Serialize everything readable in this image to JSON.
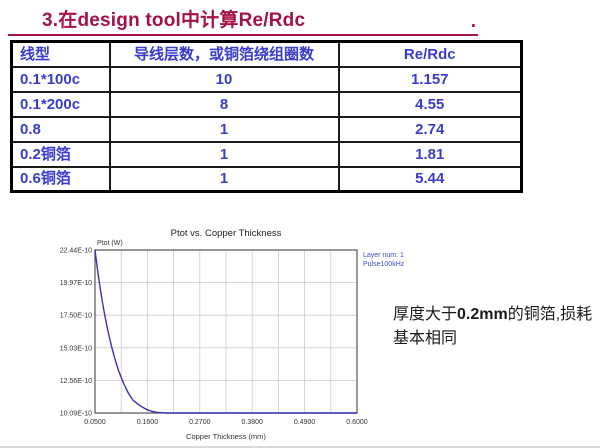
{
  "slide_title": {
    "text": "3.在design tool中计算Re/Rdc",
    "trailing_period": "."
  },
  "table": {
    "headers": [
      "线型",
      "导线层数，或铜箔绕组圈数",
      "Re/Rdc"
    ],
    "rows": [
      [
        "0.1*100c",
        "10",
        "1.157"
      ],
      [
        "0.1*200c",
        "8",
        "4.55"
      ],
      [
        "0.8",
        "1",
        "2.74"
      ],
      [
        "0.2铜箔",
        "1",
        "1.81"
      ],
      [
        "0.6铜箔",
        "1",
        "5.44"
      ]
    ]
  },
  "chart_data": {
    "type": "line",
    "title": "Ptot vs. Copper Thickness",
    "xlabel": "Copper Thickness (mm)",
    "ylabel": "Ptot (W)",
    "legend": [
      "Layer num: 1",
      "Pulse100kHz"
    ],
    "legend_position": "outside-top-right",
    "grid": true,
    "xlim": [
      0.05,
      0.6
    ],
    "ylim": [
      1.009e-09,
      2.244e-09
    ],
    "x_ticks": [
      "0.0500",
      "0.1600",
      "0.2700",
      "0.3800",
      "0.4900",
      "0.6000"
    ],
    "y_ticks": [
      "22.44E-10",
      "19.97E-10",
      "17.50E-10",
      "15.03E-10",
      "12.56E-10",
      "10.09E-10"
    ],
    "y_units": "W, values are x1e-10",
    "series": [
      {
        "name": "Layer num: 1 Pulse100kHz",
        "points": [
          [
            0.05,
            22.44
          ],
          [
            0.055,
            21.0
          ],
          [
            0.06,
            19.75
          ],
          [
            0.065,
            18.62
          ],
          [
            0.07,
            17.6
          ],
          [
            0.075,
            16.68
          ],
          [
            0.08,
            15.85
          ],
          [
            0.085,
            15.1
          ],
          [
            0.09,
            14.42
          ],
          [
            0.095,
            13.81
          ],
          [
            0.1,
            13.26
          ],
          [
            0.11,
            12.33
          ],
          [
            0.12,
            11.6
          ],
          [
            0.13,
            11.05
          ],
          [
            0.14,
            10.76
          ],
          [
            0.15,
            10.52
          ],
          [
            0.16,
            10.33
          ],
          [
            0.17,
            10.21
          ],
          [
            0.18,
            10.14
          ],
          [
            0.19,
            10.11
          ],
          [
            0.2,
            10.09
          ],
          [
            0.25,
            10.09
          ],
          [
            0.3,
            10.09
          ],
          [
            0.35,
            10.09
          ],
          [
            0.4,
            10.09
          ],
          [
            0.45,
            10.09
          ],
          [
            0.5,
            10.09
          ],
          [
            0.55,
            10.09
          ],
          [
            0.6,
            10.09
          ]
        ]
      }
    ]
  },
  "annotation": {
    "prefix": "厚度大于",
    "bold": "0.2mm",
    "suffix": "的铜箔,损耗基本相同"
  },
  "colors": {
    "title_accent": "#a3114a",
    "table_text": "#3a3ccc",
    "curve": "#3333b3",
    "legend_text": "#3b4fc4",
    "grid": "#cccccc",
    "axis": "#555555",
    "annotation": "#1a1a1a"
  }
}
